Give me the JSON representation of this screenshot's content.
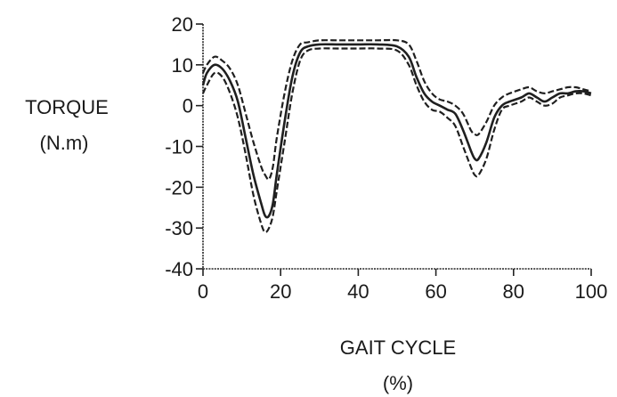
{
  "chart_data": {
    "type": "line",
    "title": "",
    "xlabel": "GAIT CYCLE",
    "xlabel_unit": "(%)",
    "ylabel": "TORQUE",
    "ylabel_unit": "(N.m)",
    "xlim": [
      0,
      100
    ],
    "ylim": [
      -40,
      20
    ],
    "x_ticks": [
      0,
      20,
      40,
      60,
      80,
      100
    ],
    "y_ticks": [
      20,
      10,
      0,
      -10,
      -20,
      -30,
      -40
    ],
    "grid": false,
    "legend": "none",
    "series": [
      {
        "style": "mean",
        "x": [
          0,
          1,
          3,
          5,
          7,
          9,
          11,
          13,
          15,
          16,
          17,
          18,
          19,
          21,
          23,
          25,
          27,
          30,
          35,
          40,
          45,
          50,
          53,
          55,
          57,
          59,
          61,
          63,
          65,
          67,
          69,
          70,
          71,
          73,
          75,
          77,
          79,
          82,
          84,
          86,
          88,
          90,
          92,
          94,
          96,
          98,
          100
        ],
        "y": [
          5,
          8,
          10,
          9,
          6,
          1,
          -8,
          -17,
          -24,
          -27,
          -27,
          -24,
          -17,
          -4,
          7,
          13,
          14.5,
          15,
          15,
          15,
          15,
          14.5,
          12,
          7,
          3,
          1,
          0,
          -1,
          -2,
          -6,
          -11,
          -13,
          -13,
          -9,
          -3,
          0,
          1,
          2,
          3,
          2,
          1,
          2,
          3,
          3,
          3.5,
          3.5,
          3
        ]
      },
      {
        "style": "band-upper",
        "x": [
          0,
          1,
          3,
          5,
          7,
          9,
          11,
          13,
          15,
          16,
          17,
          18,
          19,
          21,
          23,
          25,
          27,
          30,
          35,
          40,
          45,
          50,
          53,
          55,
          57,
          59,
          61,
          63,
          65,
          67,
          69,
          70,
          71,
          73,
          75,
          77,
          79,
          82,
          84,
          86,
          88,
          90,
          92,
          94,
          96,
          98,
          100
        ],
        "y": [
          8,
          10,
          12,
          11,
          9,
          5,
          -2,
          -9,
          -15,
          -17,
          -18,
          -15,
          -8,
          3,
          11,
          15,
          15.5,
          16,
          16,
          16,
          16,
          16,
          15,
          11,
          6,
          3,
          1.5,
          1,
          0,
          -2,
          -6,
          -7,
          -7,
          -4,
          0,
          2,
          3,
          4,
          4.5,
          3.5,
          3,
          3.5,
          4,
          4.5,
          4.5,
          4,
          3.5
        ]
      },
      {
        "style": "band-lower",
        "x": [
          0,
          1,
          3,
          5,
          7,
          9,
          11,
          13,
          15,
          16,
          17,
          18,
          19,
          21,
          23,
          25,
          27,
          30,
          35,
          40,
          45,
          50,
          53,
          55,
          57,
          59,
          61,
          63,
          65,
          67,
          69,
          70,
          71,
          73,
          75,
          77,
          79,
          82,
          84,
          86,
          88,
          90,
          92,
          94,
          96,
          98,
          100
        ],
        "y": [
          3,
          5,
          8,
          7,
          3,
          -3,
          -12,
          -22,
          -29,
          -31,
          -30,
          -27,
          -21,
          -9,
          3,
          11,
          13.5,
          14,
          14,
          14,
          14,
          13.5,
          10,
          5,
          1,
          -1,
          -1.5,
          -3,
          -5,
          -10,
          -15,
          -17,
          -17,
          -13,
          -6,
          -1,
          0,
          1,
          2,
          1,
          0,
          0.5,
          2,
          2.5,
          3,
          3,
          2.5
        ]
      }
    ]
  }
}
